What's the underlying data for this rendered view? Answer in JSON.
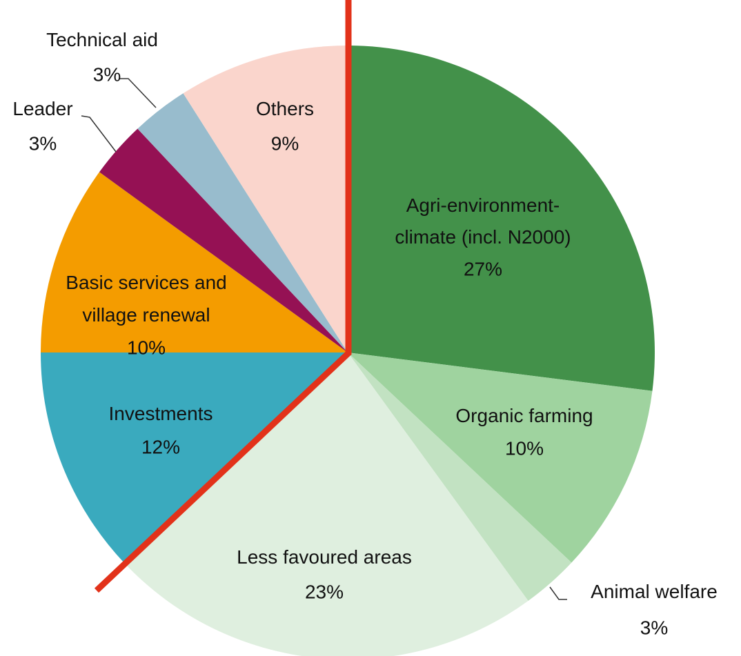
{
  "chart_data": {
    "type": "pie",
    "categories": [
      "Agri-environment-\nclimate (incl. N2000)",
      "Organic farming",
      "Animal welfare",
      "Less favoured areas",
      "Investments",
      "Basic services and\nvillage renewal",
      "Leader",
      "Technical aid",
      "Others"
    ],
    "values": [
      27,
      10,
      3,
      23,
      12,
      10,
      3,
      3,
      9
    ],
    "value_labels": [
      "27%",
      "10%",
      "3%",
      "23%",
      "12%",
      "10%",
      "3%",
      "3%",
      "9%"
    ],
    "colors": [
      "#43914a",
      "#9fd39f",
      "#c2e2c2",
      "#dfefdf",
      "#3aaabe",
      "#f49c00",
      "#951154",
      "#98bccd",
      "#fad5cc"
    ]
  }
}
